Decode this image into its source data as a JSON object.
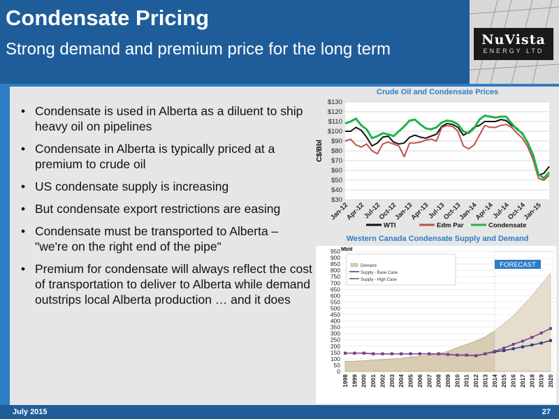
{
  "header": {
    "title": "Condensate Pricing",
    "subtitle": "Strong demand and premium price for the long term"
  },
  "logo": {
    "main": "NuVista",
    "sub": "ENERGY LTD"
  },
  "bullets": [
    "Condensate is used in Alberta as a diluent to ship heavy oil on pipelines",
    "Condensate in Alberta is typically priced at a premium to crude oil",
    "US condensate supply is increasing",
    "But condensate export restrictions are easing",
    "Condensate must be transported to Alberta – \"we're on the right end of the pipe\"",
    "Premium for condensate will always reflect the cost of transportation to deliver to Alberta while demand outstrips local Alberta production … and it does"
  ],
  "footer": {
    "date": "July 2015",
    "page": "27"
  },
  "colors": {
    "header": "#1f5d9a",
    "accent": "#2f7dc4",
    "wti": "#111111",
    "edm": "#c0504d",
    "condensate": "#1fb34a"
  },
  "chart_data": [
    {
      "type": "line",
      "title": "Crude Oil and Condensate Prices",
      "ylabel": "C$/Bbl",
      "ylim": [
        30,
        130
      ],
      "y_ticks": [
        "$30",
        "$40",
        "$50",
        "$60",
        "$70",
        "$80",
        "$90",
        "$100",
        "$110",
        "$120",
        "$130"
      ],
      "x_ticks": [
        "Jan-12",
        "Apr-12",
        "Jul-12",
        "Oct-12",
        "Jan-13",
        "Apr-13",
        "Jul-13",
        "Oct-13",
        "Jan-14",
        "Apr-14",
        "Jul-14",
        "Oct-14",
        "Jan-15"
      ],
      "legend_position": "bottom",
      "x": [
        "2012-01",
        "2012-02",
        "2012-03",
        "2012-04",
        "2012-05",
        "2012-06",
        "2012-07",
        "2012-08",
        "2012-09",
        "2012-10",
        "2012-11",
        "2012-12",
        "2013-01",
        "2013-02",
        "2013-03",
        "2013-04",
        "2013-05",
        "2013-06",
        "2013-07",
        "2013-08",
        "2013-09",
        "2013-10",
        "2013-11",
        "2013-12",
        "2014-01",
        "2014-02",
        "2014-03",
        "2014-04",
        "2014-05",
        "2014-06",
        "2014-07",
        "2014-08",
        "2014-09",
        "2014-10",
        "2014-11",
        "2014-12",
        "2015-01",
        "2015-02",
        "2015-03"
      ],
      "series": [
        {
          "name": "WTI",
          "values": [
            100,
            100,
            104,
            101,
            94,
            85,
            88,
            94,
            95,
            89,
            87,
            88,
            94,
            96,
            94,
            93,
            95,
            97,
            105,
            108,
            107,
            104,
            96,
            99,
            104,
            106,
            110,
            110,
            110,
            112,
            111,
            106,
            103,
            97,
            89,
            75,
            55,
            57,
            64
          ]
        },
        {
          "name": "Edm Par",
          "values": [
            90,
            92,
            86,
            84,
            87,
            80,
            77,
            87,
            89,
            87,
            85,
            74,
            88,
            88,
            89,
            91,
            92,
            90,
            104,
            106,
            105,
            100,
            85,
            82,
            86,
            96,
            106,
            104,
            104,
            106,
            107,
            104,
            98,
            93,
            84,
            71,
            52,
            50,
            55
          ]
        },
        {
          "name": "Condensate",
          "values": [
            108,
            110,
            113,
            106,
            102,
            93,
            95,
            98,
            97,
            95,
            100,
            105,
            111,
            112,
            107,
            103,
            102,
            104,
            109,
            111,
            110,
            107,
            100,
            98,
            103,
            112,
            116,
            115,
            114,
            115,
            115,
            108,
            102,
            98,
            88,
            76,
            56,
            52,
            58
          ]
        }
      ]
    },
    {
      "type": "area",
      "title": "Western Canada Condensate Supply and Demand",
      "ylabel": "Mb/d",
      "ylim": [
        0,
        950
      ],
      "y_ticks": [
        "0",
        "50",
        "100",
        "150",
        "200",
        "250",
        "300",
        "350",
        "400",
        "450",
        "500",
        "550",
        "600",
        "650",
        "700",
        "750",
        "800",
        "850",
        "900",
        "950"
      ],
      "categories": [
        "1998",
        "1999",
        "2000",
        "2001",
        "2002",
        "2003",
        "2004",
        "2005",
        "2006",
        "2007",
        "2008",
        "2009",
        "2010",
        "2011",
        "2012",
        "2013",
        "2014",
        "2015",
        "2016",
        "2017",
        "2018",
        "2019",
        "2020"
      ],
      "annotations": [
        "FORECAST"
      ],
      "series": [
        {
          "name": "Demand",
          "values": [
            80,
            82,
            85,
            90,
            95,
            100,
            105,
            115,
            120,
            130,
            140,
            160,
            190,
            215,
            240,
            275,
            320,
            380,
            440,
            520,
            600,
            690,
            780
          ]
        },
        {
          "name": "Supply - Base Case",
          "values": [
            145,
            145,
            145,
            140,
            140,
            140,
            140,
            140,
            140,
            140,
            140,
            135,
            130,
            130,
            125,
            140,
            155,
            165,
            180,
            195,
            210,
            225,
            245
          ]
        },
        {
          "name": "Supply - High Case",
          "values": [
            145,
            145,
            145,
            140,
            140,
            140,
            140,
            140,
            140,
            140,
            140,
            135,
            130,
            130,
            125,
            140,
            160,
            185,
            215,
            240,
            270,
            305,
            340
          ]
        }
      ]
    }
  ]
}
